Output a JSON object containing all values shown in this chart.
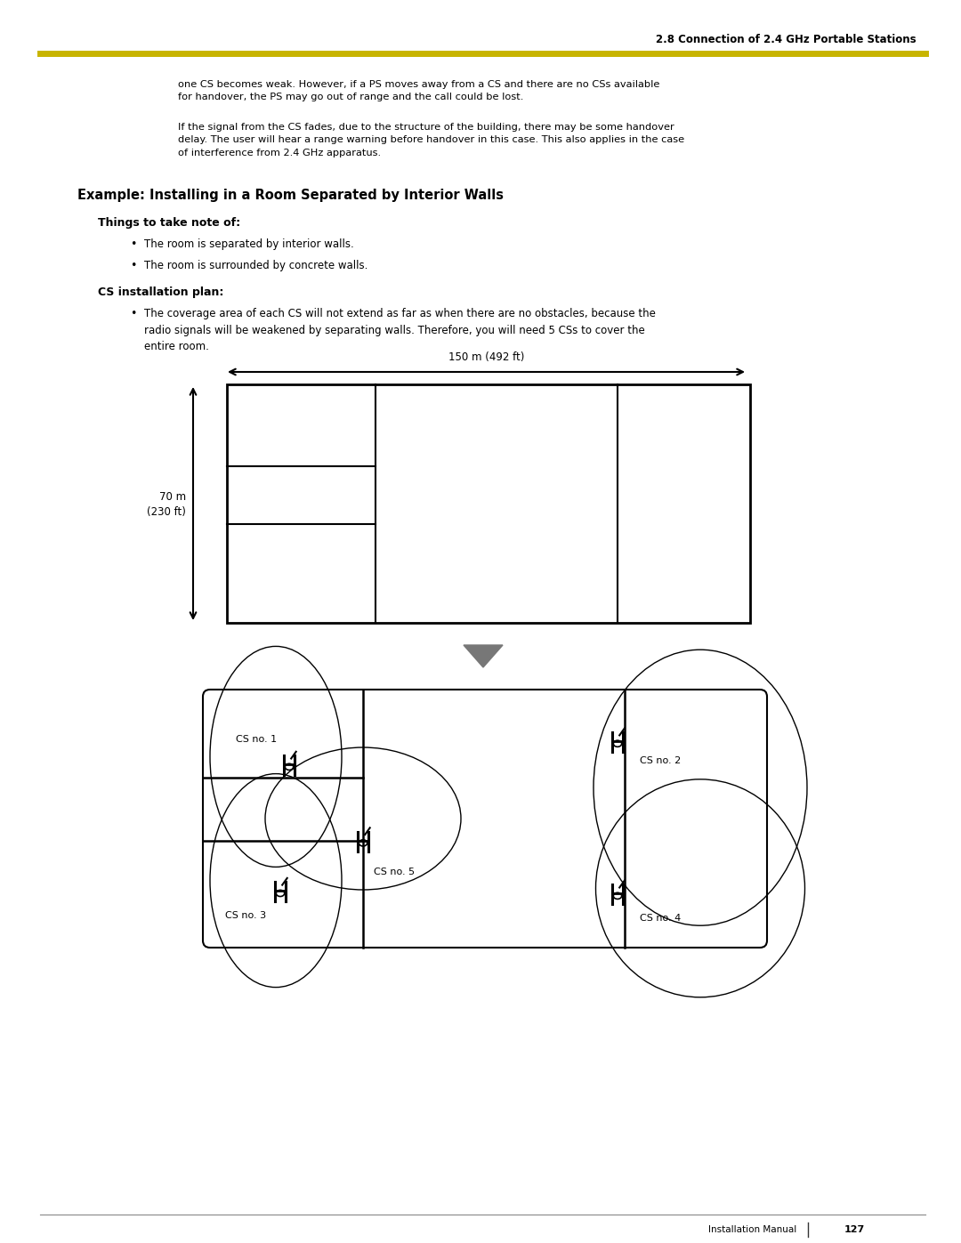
{
  "bg_color": "#ffffff",
  "header_text": "2.8 Connection of 2.4 GHz Portable Stations",
  "header_line_color": "#c8b400",
  "body_text_1": "one CS becomes weak. However, if a PS moves away from a CS and there are no CSs available\nfor handover, the PS may go out of range and the call could be lost.",
  "body_text_2": "If the signal from the CS fades, due to the structure of the building, there may be some handover\ndelay. The user will hear a range warning before handover in this case. This also applies in the case\nof interference from 2.4 GHz apparatus.",
  "section_title": "Example: Installing in a Room Separated by Interior Walls",
  "subsection1": "Things to take note of:",
  "bullet1a": "The room is separated by interior walls.",
  "bullet1b": "The room is surrounded by concrete walls.",
  "subsection2": "CS installation plan:",
  "bullet2": "The coverage area of each CS will not extend as far as when there are no obstacles, because the\nradio signals will be weakened by separating walls. Therefore, you will need 5 CSs to cover the\nentire room.",
  "dim_label": "150 m (492 ft)",
  "height_label1": "70 m",
  "height_label2": "(230 ft)",
  "footer_text": "Installation Manual",
  "page_num": "127"
}
